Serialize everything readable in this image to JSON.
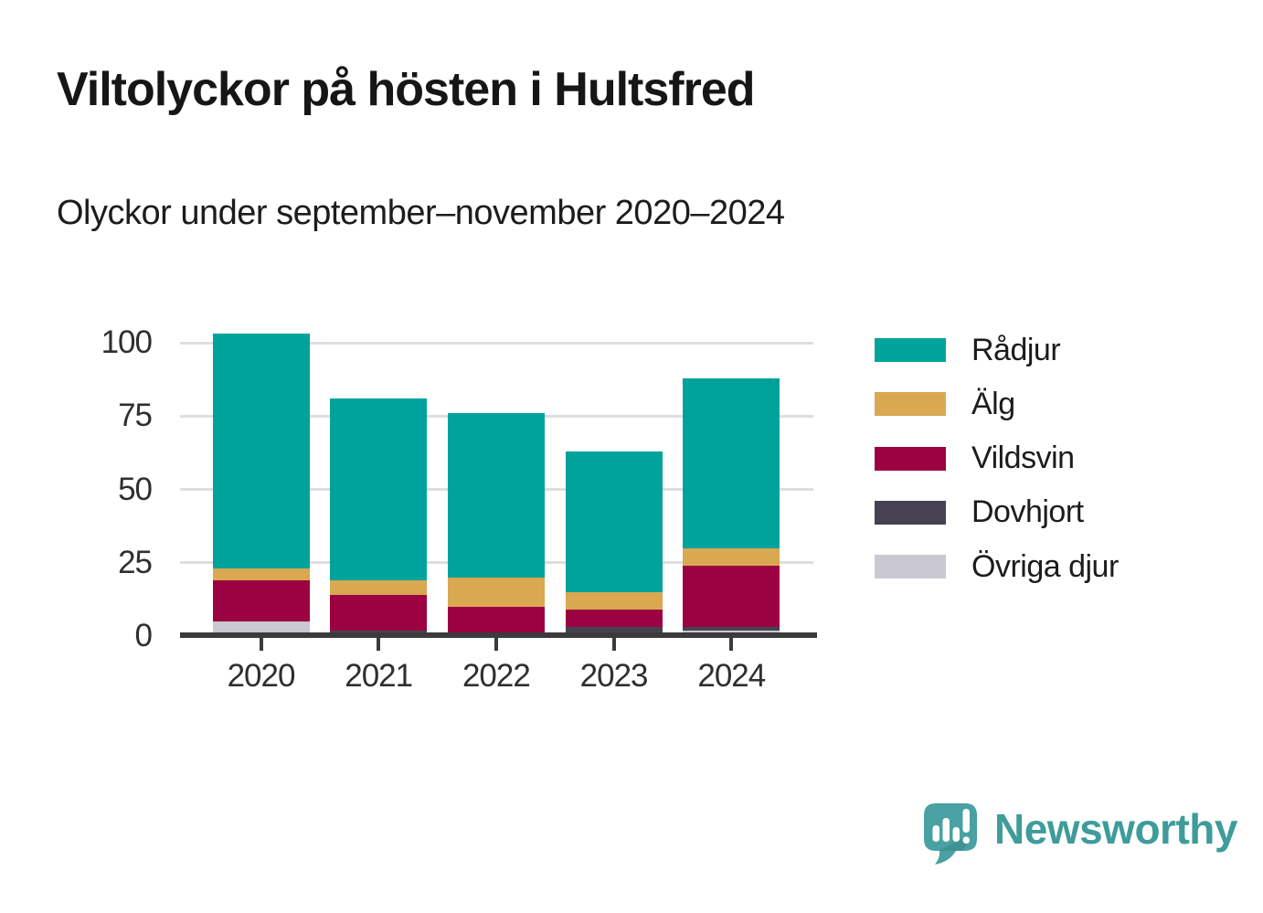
{
  "header": {
    "title": "Viltolyckor på hösten i Hultsfred",
    "subtitle": "Olyckor under september–november 2020–2024"
  },
  "chart_data": {
    "type": "bar",
    "stacked": true,
    "title": "Viltolyckor på hösten i Hultsfred",
    "subtitle": "Olyckor under september–november 2020–2024",
    "categories": [
      "2020",
      "2021",
      "2022",
      "2023",
      "2024"
    ],
    "series": [
      {
        "name": "Rådjur",
        "color": "#00a39b",
        "values": [
          80,
          62,
          56,
          48,
          58
        ]
      },
      {
        "name": "Älg",
        "color": "#d9a850",
        "values": [
          4,
          5,
          10,
          6,
          6
        ]
      },
      {
        "name": "Vildsvin",
        "color": "#9c0141",
        "values": [
          14,
          12,
          10,
          6,
          21
        ]
      },
      {
        "name": "Dovhjort",
        "color": "#474252",
        "values": [
          0,
          2,
          0,
          2,
          1
        ]
      },
      {
        "name": "Övriga djur",
        "color": "#cac8d2",
        "values": [
          5,
          0,
          0,
          1,
          2
        ]
      }
    ],
    "stack_order_bottom_to_top": [
      "Övriga djur",
      "Dovhjort",
      "Vildsvin",
      "Älg",
      "Rådjur"
    ],
    "totals": [
      103,
      81,
      76,
      63,
      88
    ],
    "xlabel": "",
    "ylabel": "",
    "y_ticks": [
      0,
      25,
      50,
      75,
      100
    ],
    "ylim": [
      0,
      104
    ],
    "grid": "horizontal",
    "legend_position": "right"
  },
  "colors": {
    "grid": "#dedede",
    "axis": "#3b3b3b",
    "title_text": "#161616",
    "axis_text": "#2f2f2f",
    "brand_teal": "#3e9c9a",
    "logo_bubble": "#4aa1a3"
  },
  "branding": {
    "wordmark": "Newsworthy",
    "logo_icon": "speech-bubble-bar-chart-icon"
  }
}
